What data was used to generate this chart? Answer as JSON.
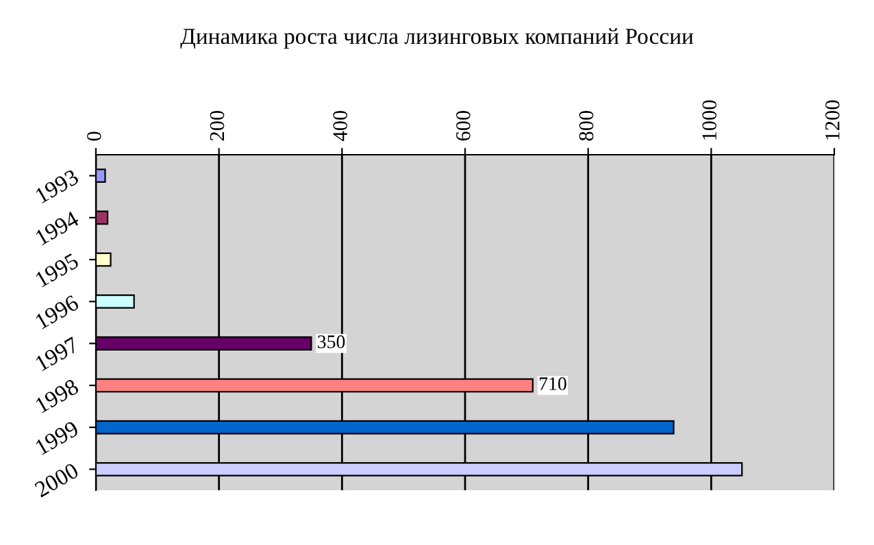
{
  "chart_data": {
    "type": "bar",
    "orientation": "horizontal",
    "title": "Динамика роста числа лизинговых компаний России",
    "categories": [
      "1993",
      "1994",
      "1995",
      "1996",
      "1997",
      "1998",
      "1999",
      "2000"
    ],
    "values": [
      15,
      19,
      24,
      62,
      350,
      710,
      939,
      1050
    ],
    "colors": [
      "#9999ff",
      "#993366",
      "#ffffcc",
      "#ccffff",
      "#660066",
      "#ff8080",
      "#0066cc",
      "#ccccff"
    ],
    "value_labels": [
      null,
      null,
      null,
      null,
      "350",
      "710",
      null,
      null
    ],
    "xlim": [
      0,
      1200
    ],
    "xticks": [
      0,
      200,
      400,
      600,
      800,
      1000,
      1200
    ],
    "grid": "x"
  }
}
